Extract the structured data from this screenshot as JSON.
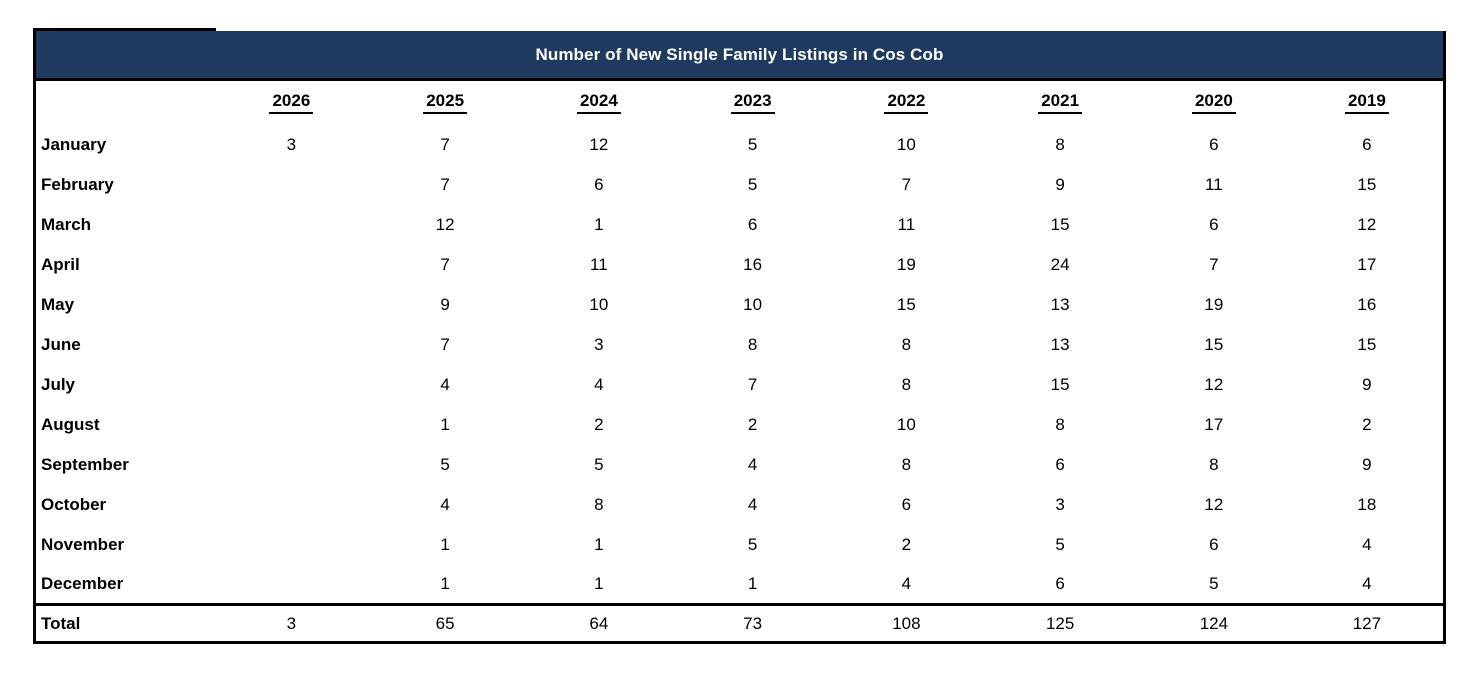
{
  "title": "Number of New Single Family Listings in Cos Cob",
  "colors": {
    "header_bg": "#1f3a5e",
    "header_text": "#ffffff",
    "border": "#000000",
    "body_text": "#000000",
    "page_bg": "#ffffff"
  },
  "table": {
    "columns": [
      "2026",
      "2025",
      "2024",
      "2023",
      "2022",
      "2021",
      "2020",
      "2019"
    ],
    "rows": [
      {
        "label": "January",
        "values": [
          "3",
          "7",
          "12",
          "5",
          "10",
          "8",
          "6",
          "6"
        ]
      },
      {
        "label": "February",
        "values": [
          "",
          "7",
          "6",
          "5",
          "7",
          "9",
          "11",
          "15"
        ]
      },
      {
        "label": "March",
        "values": [
          "",
          "12",
          "1",
          "6",
          "11",
          "15",
          "6",
          "12"
        ]
      },
      {
        "label": "April",
        "values": [
          "",
          "7",
          "11",
          "16",
          "19",
          "24",
          "7",
          "17"
        ]
      },
      {
        "label": "May",
        "values": [
          "",
          "9",
          "10",
          "10",
          "15",
          "13",
          "19",
          "16"
        ]
      },
      {
        "label": "June",
        "values": [
          "",
          "7",
          "3",
          "8",
          "8",
          "13",
          "15",
          "15"
        ]
      },
      {
        "label": "July",
        "values": [
          "",
          "4",
          "4",
          "7",
          "8",
          "15",
          "12",
          "9"
        ]
      },
      {
        "label": "August",
        "values": [
          "",
          "1",
          "2",
          "2",
          "10",
          "8",
          "17",
          "2"
        ]
      },
      {
        "label": "September",
        "values": [
          "",
          "5",
          "5",
          "4",
          "8",
          "6",
          "8",
          "9"
        ]
      },
      {
        "label": "October",
        "values": [
          "",
          "4",
          "8",
          "4",
          "6",
          "3",
          "12",
          "18"
        ]
      },
      {
        "label": "November",
        "values": [
          "",
          "1",
          "1",
          "5",
          "2",
          "5",
          "6",
          "4"
        ]
      },
      {
        "label": "December",
        "values": [
          "",
          "1",
          "1",
          "1",
          "4",
          "6",
          "5",
          "4"
        ]
      },
      {
        "label": "Total",
        "values": [
          "3",
          "65",
          "64",
          "73",
          "108",
          "125",
          "124",
          "127"
        ]
      }
    ]
  }
}
